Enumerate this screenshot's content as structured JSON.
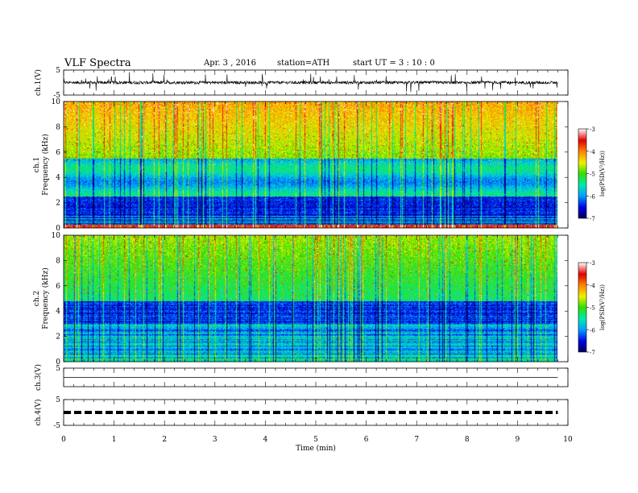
{
  "header": {
    "title": "VLF  Spectra",
    "date": "Apr. 3  , 2016",
    "station": "station=ATH",
    "start": "start  UT  =   3  : 10 : 0"
  },
  "chart_data": [
    {
      "type": "line",
      "panel": "ch1-waveform",
      "ylabel": "ch.1(V)",
      "ylim": [
        -5,
        5
      ],
      "ytick_labels": [
        "5",
        "-5"
      ],
      "baseline": 0,
      "xlim": [
        0,
        10
      ]
    },
    {
      "type": "heatmap",
      "panel": "ch1-spectrogram",
      "ylabel_lines": [
        "ch.1",
        "Frequency  (kHz)"
      ],
      "ylim": [
        0,
        10
      ],
      "ytick_labels": [
        "0",
        "2",
        "4",
        "6",
        "8",
        "10"
      ],
      "x_extent": [
        0,
        9.8
      ],
      "colorbar": {
        "label": "log(PSD(V²/Hz))",
        "range": [
          -7,
          -3
        ],
        "tick_labels": [
          "-3",
          "-4",
          "-5",
          "-6",
          "-7"
        ]
      },
      "colormap": [
        "#000060",
        "#0000e0",
        "#00a0ff",
        "#00e8b0",
        "#30e000",
        "#f0f000",
        "#ff8000",
        "#e00000",
        "#ffffff"
      ]
    },
    {
      "type": "heatmap",
      "panel": "ch2-spectrogram",
      "ylabel_lines": [
        "ch.2",
        "Frequency  (kHz)"
      ],
      "ylim": [
        0,
        10
      ],
      "ytick_labels": [
        "0",
        "2",
        "4",
        "6",
        "8",
        "10"
      ],
      "x_extent": [
        0,
        9.8
      ],
      "colorbar": {
        "label": "log(PSD(V²/Hz))",
        "range": [
          -7,
          -3
        ],
        "tick_labels": [
          "-3",
          "-4",
          "-5",
          "-6",
          "-7"
        ]
      },
      "colormap": [
        "#000060",
        "#0000e0",
        "#00a0ff",
        "#00e8b0",
        "#30e000",
        "#f0f000",
        "#ff8000",
        "#e00000",
        "#ffffff"
      ]
    },
    {
      "type": "line",
      "panel": "ch3-waveform",
      "ylabel": "ch.3(V)",
      "ylim": [
        -5,
        5
      ],
      "ytick_labels": [
        "5"
      ],
      "baseline": 0,
      "xlim": [
        0,
        10
      ]
    },
    {
      "type": "line",
      "panel": "ch4-waveform",
      "ylabel": "ch.4(V)",
      "ylim": [
        -5,
        5
      ],
      "ytick_labels": [
        "5",
        "-5"
      ],
      "baseline": 0,
      "xlim": [
        0,
        10
      ]
    }
  ],
  "x_axis": {
    "label": "Time  (min)",
    "range": [
      0,
      10
    ],
    "tick_labels": [
      "0",
      "1",
      "2",
      "3",
      "4",
      "5",
      "6",
      "7",
      "8",
      "9",
      "10"
    ]
  }
}
